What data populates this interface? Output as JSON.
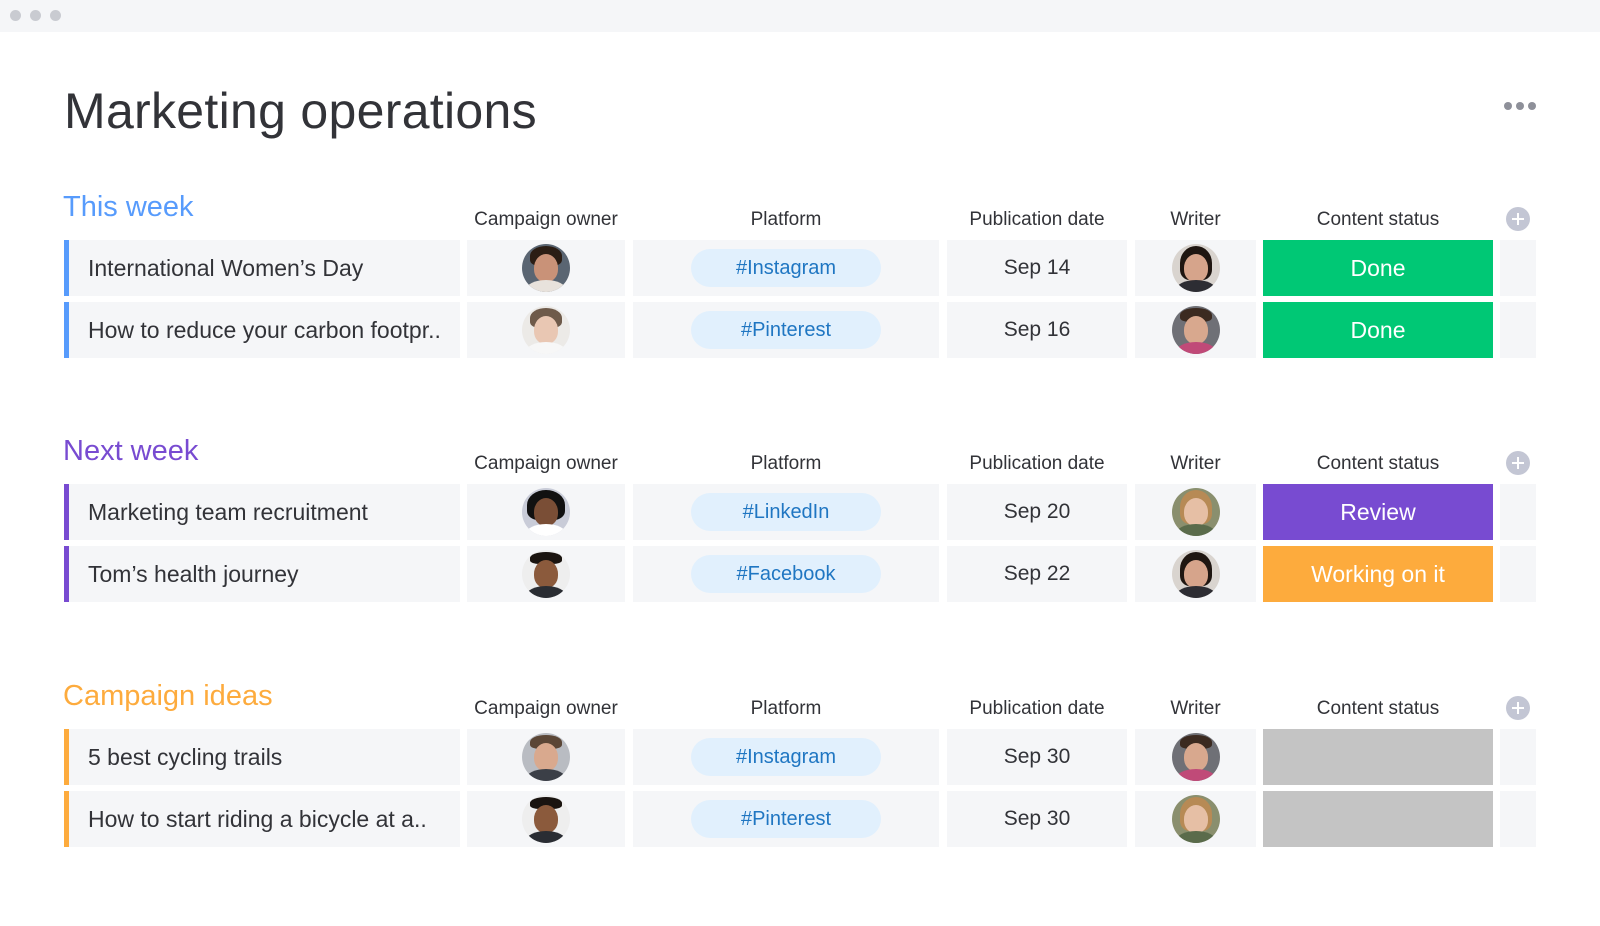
{
  "app": {
    "title": "Marketing operations"
  },
  "columns": {
    "owner": "Campaign owner",
    "platform": "Platform",
    "date": "Publication date",
    "writer": "Writer",
    "status": "Content status"
  },
  "colors": {
    "this_week": "#579bfc",
    "next_week": "#784bd1",
    "campaign_ideas": "#fdab3d",
    "done": "#00c875",
    "review": "#784bd1",
    "working": "#fdab3d",
    "empty": "#c4c4c4"
  },
  "groups": [
    {
      "title": "This week",
      "color": "#579bfc",
      "rows": [
        {
          "name": "International Women’s Day",
          "owner_avatar": "avatar-woman-dark-hair",
          "platform": "#Instagram",
          "date": "Sep 14",
          "writer_avatar": "avatar-woman-long-dark-hair",
          "status": "Done",
          "status_color": "#00c875"
        },
        {
          "name": "How to reduce your carbon footpr..",
          "owner_avatar": "avatar-woman-light-hair",
          "platform": "#Pinterest",
          "date": "Sep 16",
          "writer_avatar": "avatar-man-beard",
          "status": "Done",
          "status_color": "#00c875"
        }
      ]
    },
    {
      "title": "Next week",
      "color": "#784bd1",
      "rows": [
        {
          "name": "Marketing team recruitment",
          "owner_avatar": "avatar-woman-curly-hair",
          "platform": "#LinkedIn",
          "date": "Sep 20",
          "writer_avatar": "avatar-woman-blonde",
          "status": "Review",
          "status_color": "#784bd1"
        },
        {
          "name": "Tom’s health journey",
          "owner_avatar": "avatar-man-dark",
          "platform": "#Facebook",
          "date": "Sep 22",
          "writer_avatar": "avatar-woman-long-dark-hair",
          "status": "Working on it",
          "status_color": "#fdab3d"
        }
      ]
    },
    {
      "title": "Campaign ideas",
      "color": "#fdab3d",
      "rows": [
        {
          "name": "5 best cycling trails",
          "owner_avatar": "avatar-man-short-hair",
          "platform": "#Instagram",
          "date": "Sep 30",
          "writer_avatar": "avatar-man-beard",
          "status": "",
          "status_color": "#c4c4c4"
        },
        {
          "name": "How to start riding a bicycle at a..",
          "owner_avatar": "avatar-man-dark",
          "platform": "#Pinterest",
          "date": "Sep 30",
          "writer_avatar": "avatar-woman-blonde",
          "status": "",
          "status_color": "#c4c4c4"
        }
      ]
    }
  ]
}
